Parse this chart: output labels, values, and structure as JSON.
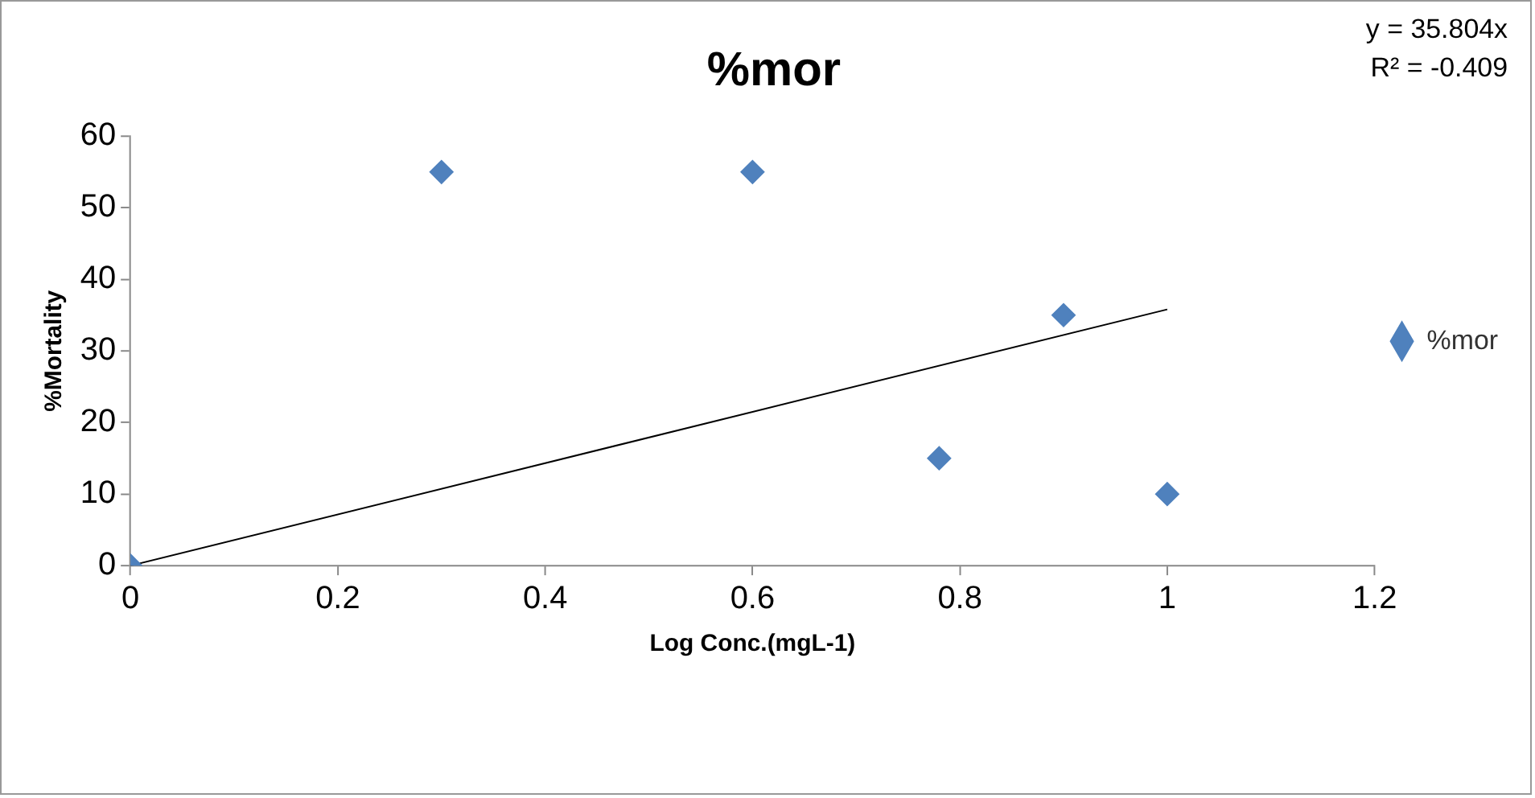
{
  "chart_data": {
    "type": "scatter",
    "title": "%mor",
    "xlabel": "Log Conc.(mgL-1)",
    "ylabel": "%Mortality",
    "annotations": [
      "y = 35.804x",
      "R² = -0.409"
    ],
    "series": [
      {
        "name": "%mor",
        "color": "#4f81bd",
        "x": [
          0,
          0.3,
          0.6,
          0.78,
          0.9,
          1
        ],
        "values": [
          0,
          55,
          55,
          15,
          35,
          10
        ],
        "marker": "diamond"
      },
      {
        "type": "line",
        "color": "#000000",
        "x": [
          0,
          1
        ],
        "values": [
          0,
          35.804
        ],
        "marker": "none"
      }
    ],
    "xlim": [
      0,
      1.2
    ],
    "xticks": [
      0,
      0.2,
      0.4,
      0.6,
      0.8,
      1,
      1.2
    ],
    "ylim": [
      0,
      60
    ],
    "yticks": [
      0,
      10,
      20,
      30,
      40,
      50,
      60
    ],
    "grid": false,
    "legend": "right"
  }
}
